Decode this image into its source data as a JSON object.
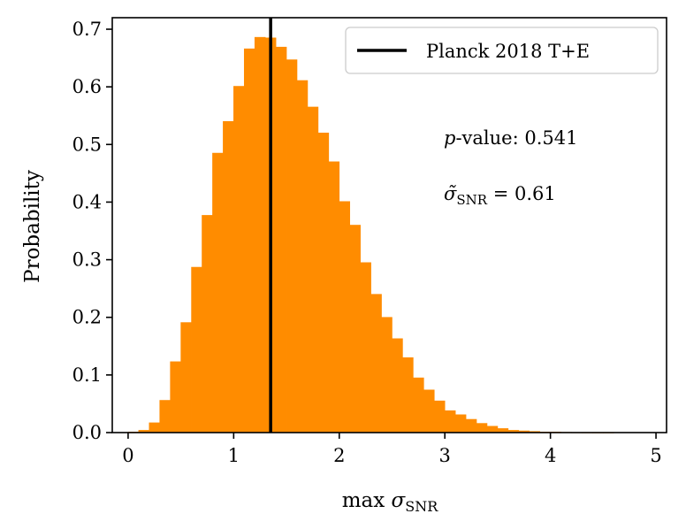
{
  "chart_data": {
    "type": "bar",
    "xlabel_prefix": "max ",
    "xlabel_symbol": "σ",
    "xlabel_sub": "SNR",
    "ylabel": "Probability",
    "xlim": [
      -0.15,
      5.1
    ],
    "ylim": [
      0,
      0.72
    ],
    "xticks": [
      0,
      1,
      2,
      3,
      4,
      5
    ],
    "xtick_labels": [
      "0",
      "1",
      "2",
      "3",
      "4",
      "5"
    ],
    "yticks": [
      0.0,
      0.1,
      0.2,
      0.3,
      0.4,
      0.5,
      0.6,
      0.7
    ],
    "ytick_labels": [
      "0.0",
      "0.1",
      "0.2",
      "0.3",
      "0.4",
      "0.5",
      "0.6",
      "0.7"
    ],
    "bin_width": 0.1,
    "bin_starts": [
      0.0,
      0.1,
      0.2,
      0.3,
      0.4,
      0.5,
      0.6,
      0.7,
      0.8,
      0.9,
      1.0,
      1.1,
      1.2,
      1.3,
      1.4,
      1.5,
      1.6,
      1.7,
      1.8,
      1.9,
      2.0,
      2.1,
      2.2,
      2.3,
      2.4,
      2.5,
      2.6,
      2.7,
      2.8,
      2.9,
      3.0,
      3.1,
      3.2,
      3.3,
      3.4,
      3.5,
      3.6,
      3.7,
      3.8,
      3.9,
      4.0,
      4.1,
      4.2,
      4.3,
      4.4,
      4.5,
      4.6,
      4.7,
      4.8,
      4.9
    ],
    "values": [
      0.001,
      0.004,
      0.017,
      0.056,
      0.123,
      0.191,
      0.287,
      0.377,
      0.485,
      0.54,
      0.601,
      0.666,
      0.686,
      0.685,
      0.669,
      0.647,
      0.611,
      0.565,
      0.52,
      0.47,
      0.401,
      0.36,
      0.295,
      0.24,
      0.2,
      0.163,
      0.13,
      0.095,
      0.074,
      0.055,
      0.038,
      0.031,
      0.023,
      0.016,
      0.011,
      0.007,
      0.004,
      0.003,
      0.002,
      0.001,
      0.001,
      0.0005,
      0.0003,
      0.0002,
      0.0001,
      0.0001,
      0,
      0,
      0,
      0
    ],
    "vline_x": 1.35,
    "legend": {
      "label": "Planck 2018 T+E",
      "placement": "upper right"
    },
    "bar_color": "#ff8c00",
    "vline_color": "#000000",
    "annotations": {
      "pvalue_italic": "p",
      "pvalue_rest": "-value: 0.541",
      "median_symbol": "σ̃",
      "median_sub": "SNR",
      "median_value": " = 0.61"
    }
  }
}
